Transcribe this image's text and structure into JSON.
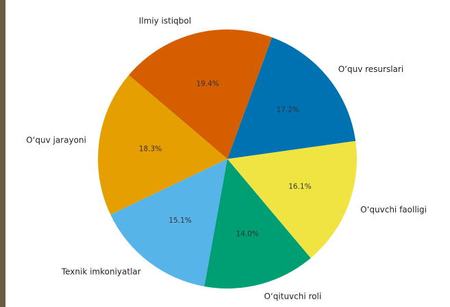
{
  "chart_data": {
    "type": "pie",
    "categories": [
      "O‘quv resurslari",
      "Ilmiy istiqbol",
      "O‘quv jarayoni",
      "Texnik imkoniyatlar",
      "O‘qituvchi roli",
      "O‘quvchi faolligi"
    ],
    "values": [
      17.2,
      19.4,
      18.3,
      15.1,
      14.0,
      16.1
    ],
    "value_labels": [
      "17.2%",
      "19.4%",
      "18.3%",
      "15.1%",
      "14.0%",
      "16.1%"
    ],
    "colors": [
      "#0072b2",
      "#d55e00",
      "#e69f00",
      "#56b4e9",
      "#009e73",
      "#f0e442"
    ]
  }
}
